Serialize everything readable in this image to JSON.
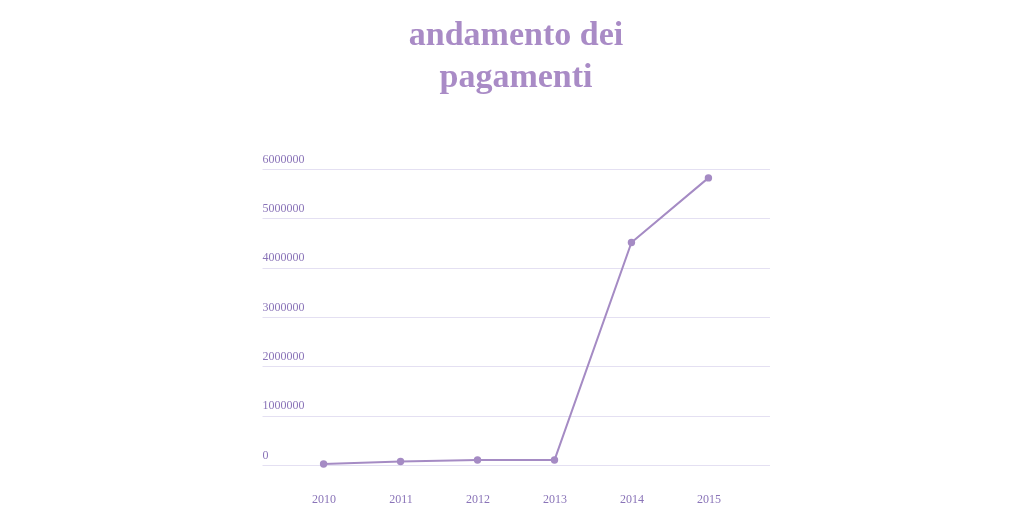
{
  "chart_data": {
    "type": "line",
    "title": [
      "andamento dei",
      "pagamenti"
    ],
    "categories": [
      "2010",
      "2011",
      "2012",
      "2013",
      "2014",
      "2015"
    ],
    "series": [
      {
        "color": "#a58bc4",
        "values": [
          20000,
          70000,
          100000,
          100000,
          4510000,
          5820000
        ]
      }
    ],
    "ylim": [
      0,
      6000000
    ],
    "yticks": [
      0,
      1000000,
      2000000,
      3000000,
      4000000,
      5000000,
      6000000
    ],
    "grid": "y",
    "marker": "circle",
    "line_style": "solid"
  }
}
